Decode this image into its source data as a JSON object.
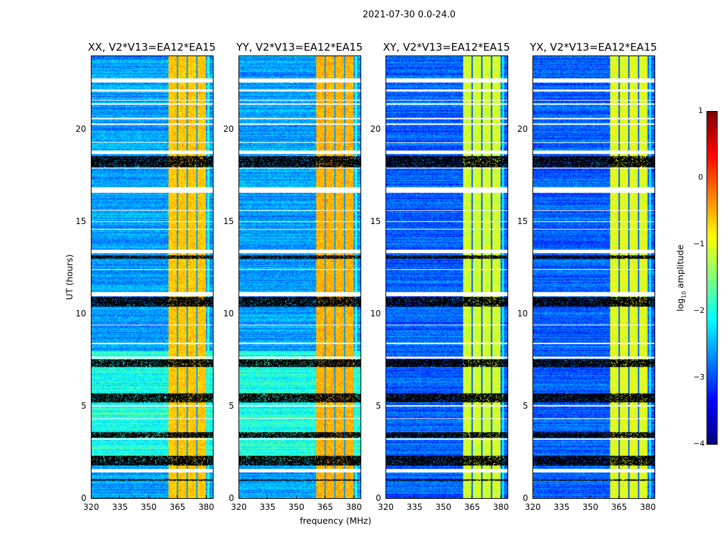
{
  "chart_data": {
    "type": "heatmap",
    "title": "2021-07-30 0.0-24.0",
    "xlabel": "frequency (MHz)",
    "ylabel": "UT (hours)",
    "xlim": [
      320,
      384
    ],
    "ylim": [
      0,
      24
    ],
    "xticks": [
      "320",
      "335",
      "350",
      "365",
      "380"
    ],
    "yticks": [
      "0",
      "5",
      "10",
      "15",
      "20"
    ],
    "colorscale": "jet",
    "colorbar": {
      "label": "log10 amplitude",
      "range": [
        -4,
        1
      ],
      "ticks": [
        "1",
        "0",
        "−1",
        "−2",
        "−3",
        "−4"
      ]
    },
    "rfi_band_mhz": [
      360.5,
      380
    ],
    "band_gaps_mhz": [
      365.2,
      370.3,
      375.3
    ],
    "flagged_white_hours": [
      [
        22.6,
        22.8
      ],
      [
        22.1,
        22.2
      ],
      [
        21.6,
        21.65
      ],
      [
        21.4,
        21.45
      ],
      [
        20.6,
        20.65
      ],
      [
        20.3,
        20.35
      ],
      [
        19.3,
        19.35
      ],
      [
        18.7,
        18.9
      ],
      [
        17.9,
        17.95
      ],
      [
        16.6,
        16.9
      ],
      [
        15.6,
        15.65
      ],
      [
        15.0,
        15.05
      ],
      [
        14.6,
        14.65
      ],
      [
        13.3,
        13.5
      ],
      [
        12.4,
        12.45
      ],
      [
        11.0,
        11.2
      ],
      [
        9.4,
        9.45
      ],
      [
        8.4,
        8.45
      ],
      [
        7.6,
        7.7
      ],
      [
        5.0,
        5.05
      ],
      [
        4.3,
        4.35
      ],
      [
        3.2,
        3.25
      ],
      [
        1.4,
        1.6
      ]
    ],
    "flagged_black_hours": [
      [
        18.0,
        18.6
      ],
      [
        13.0,
        13.2
      ],
      [
        10.4,
        10.95
      ],
      [
        7.15,
        7.55
      ],
      [
        5.2,
        5.7
      ],
      [
        3.3,
        3.6
      ],
      [
        1.8,
        2.3
      ],
      [
        0.95,
        1.05
      ]
    ],
    "panels": [
      {
        "title": "XX, V2*V13=EA12*EA15",
        "background_log": -2.6,
        "band_log": -0.6
      },
      {
        "title": "YY, V2*V13=EA12*EA15",
        "background_log": -2.6,
        "band_log": -0.5
      },
      {
        "title": "XY, V2*V13=EA12*EA15",
        "background_log": -2.9,
        "band_log": -1.1
      },
      {
        "title": "YX, V2*V13=EA12*EA15",
        "background_log": -2.9,
        "band_log": -1.0
      }
    ]
  }
}
